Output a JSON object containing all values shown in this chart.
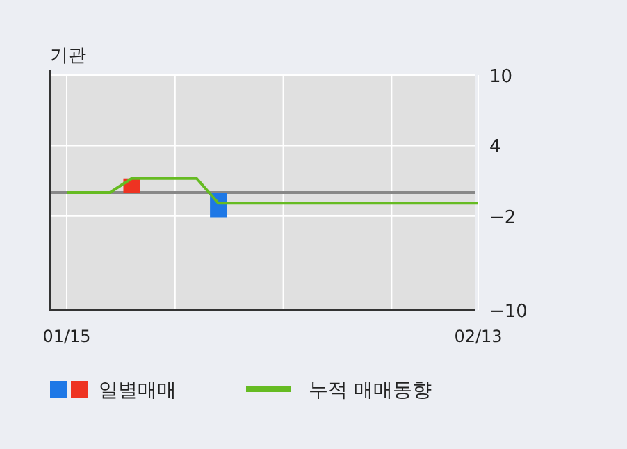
{
  "chart_data": {
    "type": "bar",
    "title": "기관",
    "categories": [
      "01/15",
      null,
      null,
      null,
      null,
      null,
      null,
      null,
      null,
      null,
      null,
      null,
      null,
      null,
      null,
      null,
      null,
      null,
      null,
      "02/13"
    ],
    "series": [
      {
        "name": "일별매매",
        "colors": [
          null,
          null,
          null,
          "#ee3322",
          null,
          null,
          null,
          "#1e78e6",
          null,
          null,
          null,
          null,
          null,
          null,
          null,
          null,
          null,
          null,
          null,
          null
        ],
        "values": [
          null,
          null,
          null,
          1.2,
          null,
          null,
          null,
          -2.1,
          null,
          null,
          null,
          null,
          null,
          null,
          null,
          null,
          null,
          null,
          null,
          null
        ]
      },
      {
        "name": "누적 매매동향",
        "type": "line",
        "color": "#66bb22",
        "values": [
          0,
          0,
          0,
          1.2,
          1.2,
          1.2,
          1.2,
          -0.9,
          -0.9,
          -0.9,
          -0.9,
          -0.9,
          -0.9,
          -0.9,
          -0.9,
          -0.9,
          -0.9,
          -0.9,
          -0.9,
          -0.9
        ]
      }
    ],
    "ylim": [
      -10,
      10
    ],
    "yticks": [
      10,
      4,
      -2,
      -10
    ],
    "ref_lines": [
      {
        "axis": "y",
        "value": 0,
        "color": "#888888"
      }
    ],
    "grid": true,
    "legend": "bottom"
  }
}
